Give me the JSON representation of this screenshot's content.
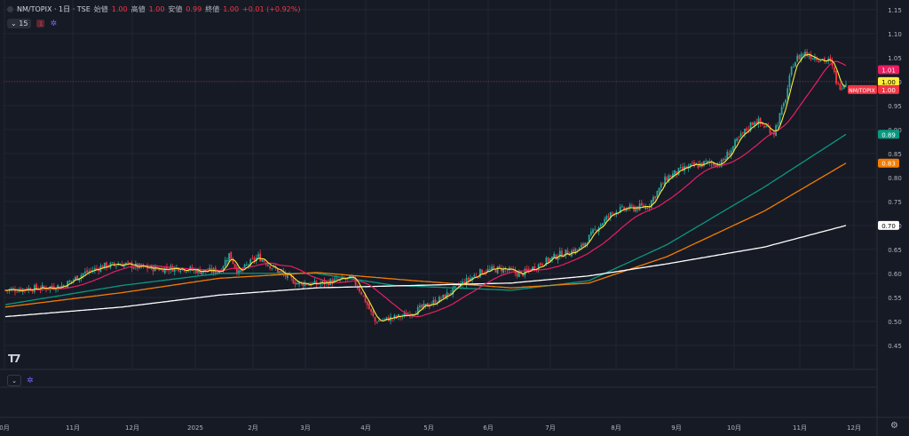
{
  "header": {
    "symbol": "NM/TOPIX · 1日 · TSE",
    "open_label": "始値",
    "open": "1.00",
    "high_label": "高値",
    "high": "1.00",
    "low_label": "安値",
    "low": "0.99",
    "close_label": "終値",
    "close": "1.00",
    "change": "+0.01 (+0.92%)",
    "interval_badge": "15",
    "indicator_badge": "1"
  },
  "colors": {
    "background": "#161a25",
    "grid": "#232632",
    "up": "#26a69a",
    "down": "#f23645",
    "ma_fast": "#ffeb3b",
    "ma_pink": "#e91e63",
    "ma_teal": "#089981",
    "ma_orange": "#f57c00",
    "ma_white": "#ffffff"
  },
  "chart_data": {
    "type": "line",
    "yaxis": {
      "ylim": [
        0.4,
        1.17
      ],
      "ticks": [
        0.45,
        0.5,
        0.55,
        0.6,
        0.65,
        0.7,
        0.75,
        0.8,
        0.85,
        0.9,
        0.95,
        1.0,
        1.05,
        1.1,
        1.15
      ]
    },
    "xaxis": {
      "ticks": [
        "0月",
        "11月",
        "12月",
        "2025",
        "2月",
        "3月",
        "4月",
        "5月",
        "6月",
        "7月",
        "8月",
        "9月",
        "10月",
        "11月",
        "12月"
      ]
    },
    "last_price_label": "NM/TOPIX",
    "price_labels": [
      {
        "value": 1.01,
        "text": "1.01",
        "color": "#e91e63",
        "fg": "#ffffff"
      },
      {
        "value": 1.0,
        "text": "1.00",
        "color": "#ffeb3b",
        "fg": "#000000"
      },
      {
        "value": 0.89,
        "text": "0.89",
        "color": "#089981",
        "fg": "#ffffff"
      },
      {
        "value": 0.83,
        "text": "0.83",
        "color": "#f57c00",
        "fg": "#ffffff"
      },
      {
        "value": 0.7,
        "text": "0.70",
        "color": "#ffffff",
        "fg": "#000000"
      }
    ],
    "last_price": {
      "value": 1.0,
      "text": "1.00",
      "color": "#f23645"
    },
    "candles_close_anchors": [
      [
        0,
        0.565
      ],
      [
        10,
        0.568
      ],
      [
        20,
        0.57
      ],
      [
        30,
        0.575
      ],
      [
        40,
        0.6
      ],
      [
        50,
        0.615
      ],
      [
        60,
        0.62
      ],
      [
        70,
        0.612
      ],
      [
        80,
        0.61
      ],
      [
        90,
        0.612
      ],
      [
        100,
        0.605
      ],
      [
        110,
        0.605
      ],
      [
        115,
        0.64
      ],
      [
        120,
        0.6
      ],
      [
        125,
        0.62
      ],
      [
        130,
        0.635
      ],
      [
        140,
        0.605
      ],
      [
        150,
        0.58
      ],
      [
        160,
        0.578
      ],
      [
        170,
        0.585
      ],
      [
        178,
        0.59
      ],
      [
        183,
        0.56
      ],
      [
        190,
        0.5
      ],
      [
        196,
        0.505
      ],
      [
        205,
        0.512
      ],
      [
        215,
        0.53
      ],
      [
        225,
        0.55
      ],
      [
        235,
        0.58
      ],
      [
        245,
        0.605
      ],
      [
        255,
        0.61
      ],
      [
        265,
        0.598
      ],
      [
        275,
        0.62
      ],
      [
        285,
        0.64
      ],
      [
        295,
        0.65
      ],
      [
        305,
        0.7
      ],
      [
        313,
        0.73
      ],
      [
        320,
        0.735
      ],
      [
        330,
        0.74
      ],
      [
        340,
        0.8
      ],
      [
        350,
        0.82
      ],
      [
        360,
        0.83
      ],
      [
        368,
        0.83
      ],
      [
        375,
        0.87
      ],
      [
        385,
        0.92
      ],
      [
        395,
        0.895
      ],
      [
        400,
        0.95
      ],
      [
        405,
        1.04
      ],
      [
        410,
        1.06
      ],
      [
        418,
        1.05
      ],
      [
        424,
        1.04
      ],
      [
        428,
        0.99
      ],
      [
        432,
        1.0
      ]
    ],
    "series": [
      {
        "name": "",
        "key": "ma_teal",
        "values": [
          [
            0,
            0.535
          ],
          [
            60,
            0.575
          ],
          [
            110,
            0.6
          ],
          [
            160,
            0.6
          ],
          [
            200,
            0.575
          ],
          [
            260,
            0.565
          ],
          [
            300,
            0.585
          ],
          [
            340,
            0.66
          ],
          [
            390,
            0.78
          ],
          [
            432,
            0.89
          ]
        ]
      },
      {
        "name": "",
        "key": "ma_orange",
        "values": [
          [
            0,
            0.53
          ],
          [
            60,
            0.56
          ],
          [
            110,
            0.59
          ],
          [
            160,
            0.602
          ],
          [
            210,
            0.585
          ],
          [
            260,
            0.57
          ],
          [
            300,
            0.58
          ],
          [
            340,
            0.635
          ],
          [
            390,
            0.73
          ],
          [
            432,
            0.83
          ]
        ]
      },
      {
        "name": "",
        "key": "ma_white",
        "values": [
          [
            0,
            0.51
          ],
          [
            60,
            0.53
          ],
          [
            110,
            0.555
          ],
          [
            160,
            0.57
          ],
          [
            210,
            0.575
          ],
          [
            260,
            0.58
          ],
          [
            300,
            0.595
          ],
          [
            340,
            0.62
          ],
          [
            390,
            0.655
          ],
          [
            432,
            0.7
          ]
        ]
      }
    ]
  }
}
